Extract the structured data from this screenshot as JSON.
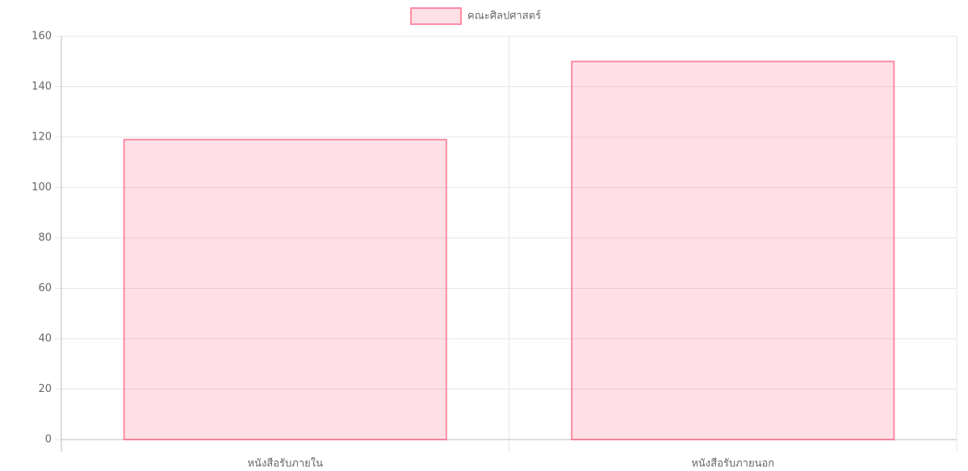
{
  "chart_data": {
    "type": "bar",
    "categories": [
      "หนังสือรับภายใน",
      "หนังสือรับภายนอก"
    ],
    "series": [
      {
        "name": "คณะศิลปศาสตร์",
        "color": "#ff6384",
        "values": [
          119,
          150
        ]
      }
    ],
    "ylim": [
      0,
      160
    ],
    "yticks": [
      0,
      20,
      40,
      60,
      80,
      100,
      120,
      140,
      160
    ],
    "grid": true,
    "legend": "top"
  }
}
